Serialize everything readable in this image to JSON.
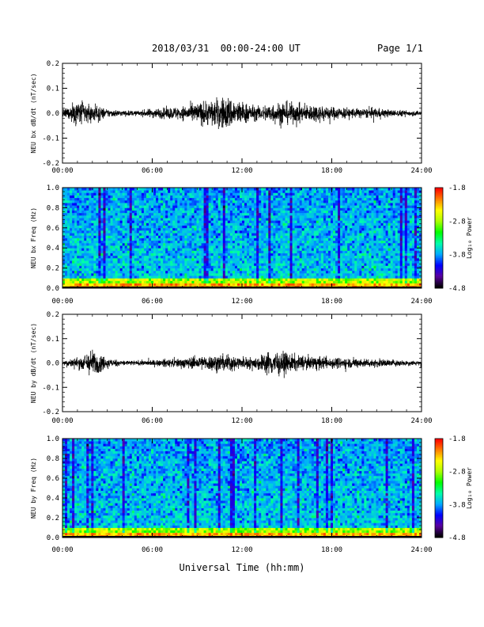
{
  "header": {
    "date_range": "2018/03/31  00:00-24:00 UT",
    "page": "Page 1/1"
  },
  "xlabel": "Universal Time (hh:mm)",
  "colorbar_label": "Log₁₀ Power",
  "colors": {
    "waveform": "#000000",
    "colorbar": [
      "#000000",
      "#5a00a0",
      "#0000ff",
      "#00aaff",
      "#00ffaa",
      "#00ff00",
      "#aaff00",
      "#ffff00",
      "#ff8000",
      "#ff0000"
    ]
  },
  "chart_data": [
    {
      "type": "line",
      "ylabel": "NEU bx dB/dt (nT/sec)",
      "x_range": [
        "00:00",
        "24:00"
      ],
      "xlim": [
        0,
        24
      ],
      "ylim": [
        -0.2,
        0.2
      ],
      "x_ticks": [
        "00:00",
        "06:00",
        "12:00",
        "18:00",
        "24:00"
      ],
      "y_ticks": [
        "-0.2",
        "-0.1",
        "0.0",
        "0.1",
        "0.2"
      ],
      "envelope_hours": [
        0,
        1,
        2,
        3,
        4,
        5,
        6,
        7,
        8,
        9,
        10,
        11,
        12,
        13,
        14,
        15,
        16,
        17,
        18,
        19,
        20,
        21,
        22,
        23,
        24
      ],
      "envelope_amplitude": [
        0.012,
        0.06,
        0.04,
        0.018,
        0.012,
        0.01,
        0.02,
        0.024,
        0.03,
        0.045,
        0.06,
        0.075,
        0.05,
        0.03,
        0.045,
        0.05,
        0.035,
        0.04,
        0.028,
        0.025,
        0.02,
        0.022,
        0.015,
        0.012,
        0.01
      ]
    },
    {
      "type": "heatmap",
      "ylabel": "NEU bx Freq (Hz)",
      "x_range": [
        "00:00",
        "24:00"
      ],
      "xlim": [
        0,
        24
      ],
      "ylim": [
        0.0,
        1.0
      ],
      "x_ticks": [
        "00:00",
        "06:00",
        "12:00",
        "18:00",
        "24:00"
      ],
      "y_ticks": [
        "0.0",
        "0.2",
        "0.4",
        "0.6",
        "0.8",
        "1.0"
      ],
      "colorbar": {
        "label": "Log₁₀ Power",
        "ticks": [
          "-1.8",
          "-2.8",
          "-3.8",
          "-4.8"
        ],
        "range": [
          -4.8,
          -1.8
        ]
      }
    },
    {
      "type": "line",
      "ylabel": "NEU by dB/dt (nT/sec)",
      "x_range": [
        "00:00",
        "24:00"
      ],
      "xlim": [
        0,
        24
      ],
      "ylim": [
        -0.2,
        0.2
      ],
      "x_ticks": [
        "00:00",
        "06:00",
        "12:00",
        "18:00",
        "24:00"
      ],
      "y_ticks": [
        "-0.2",
        "-0.1",
        "0.0",
        "0.1",
        "0.2"
      ],
      "envelope_hours": [
        0,
        1,
        2,
        3,
        4,
        5,
        6,
        7,
        8,
        9,
        10,
        11,
        12,
        13,
        14,
        15,
        16,
        17,
        18,
        19,
        20,
        21,
        22,
        23,
        24
      ],
      "envelope_amplitude": [
        0.01,
        0.025,
        0.06,
        0.02,
        0.012,
        0.01,
        0.012,
        0.018,
        0.022,
        0.028,
        0.035,
        0.04,
        0.025,
        0.03,
        0.06,
        0.045,
        0.03,
        0.03,
        0.025,
        0.022,
        0.02,
        0.018,
        0.015,
        0.012,
        0.01
      ]
    },
    {
      "type": "heatmap",
      "ylabel": "NEU by Freq (Hz)",
      "x_range": [
        "00:00",
        "24:00"
      ],
      "xlim": [
        0,
        24
      ],
      "ylim": [
        0.0,
        1.0
      ],
      "x_ticks": [
        "00:00",
        "06:00",
        "12:00",
        "18:00",
        "24:00"
      ],
      "y_ticks": [
        "0.0",
        "0.2",
        "0.4",
        "0.6",
        "0.8",
        "1.0"
      ],
      "colorbar": {
        "label": "Log₁₀ Power",
        "ticks": [
          "-1.8",
          "-2.8",
          "-3.8",
          "-4.8"
        ],
        "range": [
          -4.8,
          -1.8
        ]
      }
    }
  ]
}
